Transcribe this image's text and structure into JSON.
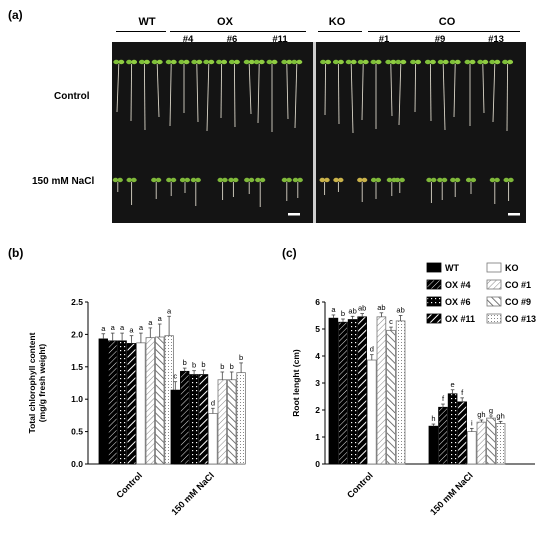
{
  "panels": {
    "a": "(a)",
    "b": "(b)",
    "c": "(c)"
  },
  "photo": {
    "groups": [
      {
        "label": "WT",
        "lines": []
      },
      {
        "label": "OX",
        "lines": [
          "#4",
          "#6",
          "#11"
        ]
      },
      {
        "label": "KO",
        "lines": []
      },
      {
        "label": "CO",
        "lines": [
          "#1",
          "#9",
          "#13"
        ]
      }
    ],
    "rows": [
      "Control",
      "150 mM NaCl"
    ]
  },
  "legend": {
    "left": [
      "WT",
      "OX #4",
      "OX #6",
      "OX #11"
    ],
    "right": [
      "KO",
      "CO #1",
      "CO #9",
      "CO #13"
    ]
  },
  "pattern_colors": {
    "dark": "#000000",
    "light_outline": "#777777",
    "background": "#ffffff"
  },
  "chart_data": [
    {
      "type": "bar",
      "panel": "(b)",
      "ylabel": "Total chlorophyll content (mg/g fresh weight)",
      "ylim": [
        0,
        2.5
      ],
      "yticks": [
        "0.0",
        "0.5",
        "1.0",
        "1.5",
        "2.0",
        "2.5"
      ],
      "categories": [
        "Control",
        "150 mM NaCl"
      ],
      "series": [
        {
          "name": "WT",
          "values": [
            1.93,
            1.14
          ],
          "errors": [
            0.08,
            0.13
          ],
          "letters": [
            "a",
            "c"
          ]
        },
        {
          "name": "OX #4",
          "values": [
            1.9,
            1.43
          ],
          "errors": [
            0.12,
            0.05
          ],
          "letters": [
            "a",
            "b"
          ]
        },
        {
          "name": "OX #6",
          "values": [
            1.9,
            1.38
          ],
          "errors": [
            0.12,
            0.06
          ],
          "letters": [
            "a",
            "b"
          ]
        },
        {
          "name": "OX #11",
          "values": [
            1.86,
            1.38
          ],
          "errors": [
            0.12,
            0.07
          ],
          "letters": [
            "a",
            "b"
          ]
        },
        {
          "name": "KO",
          "values": [
            1.87,
            0.78
          ],
          "errors": [
            0.15,
            0.08
          ],
          "letters": [
            "a",
            "d"
          ]
        },
        {
          "name": "CO #1",
          "values": [
            1.95,
            1.3
          ],
          "errors": [
            0.15,
            0.12
          ],
          "letters": [
            "a",
            "b"
          ]
        },
        {
          "name": "CO #9",
          "values": [
            1.96,
            1.3
          ],
          "errors": [
            0.2,
            0.12
          ],
          "letters": [
            "a",
            "b"
          ]
        },
        {
          "name": "CO #13",
          "values": [
            1.98,
            1.41
          ],
          "errors": [
            0.3,
            0.15
          ],
          "letters": [
            "a",
            "b"
          ]
        }
      ]
    },
    {
      "type": "bar",
      "panel": "(c)",
      "ylabel": "Root lenght (cm)",
      "ylim": [
        0,
        6
      ],
      "yticks": [
        "0",
        "1",
        "2",
        "3",
        "4",
        "5",
        "6"
      ],
      "categories": [
        "Control",
        "150 mM NaCl"
      ],
      "series": [
        {
          "name": "WT",
          "values": [
            5.4,
            1.4
          ],
          "errors": [
            0.12,
            0.08
          ],
          "letters": [
            "a",
            "h"
          ]
        },
        {
          "name": "OX #4",
          "values": [
            5.25,
            2.1
          ],
          "errors": [
            0.12,
            0.12
          ],
          "letters": [
            "b",
            "f"
          ]
        },
        {
          "name": "OX #6",
          "values": [
            5.35,
            2.6
          ],
          "errors": [
            0.12,
            0.15
          ],
          "letters": [
            "ab",
            "e"
          ]
        },
        {
          "name": "OX #11",
          "values": [
            5.45,
            2.3
          ],
          "errors": [
            0.12,
            0.15
          ],
          "letters": [
            "ab",
            "f"
          ]
        },
        {
          "name": "KO",
          "values": [
            3.85,
            1.2
          ],
          "errors": [
            0.2,
            0.12
          ],
          "letters": [
            "d",
            "i"
          ]
        },
        {
          "name": "CO #1",
          "values": [
            5.45,
            1.55
          ],
          "errors": [
            0.15,
            0.08
          ],
          "letters": [
            "ab",
            "gh"
          ]
        },
        {
          "name": "CO #9",
          "values": [
            4.95,
            1.7
          ],
          "errors": [
            0.12,
            0.08
          ],
          "letters": [
            "c",
            "g"
          ]
        },
        {
          "name": "CO #13",
          "values": [
            5.3,
            1.5
          ],
          "errors": [
            0.2,
            0.08
          ],
          "letters": [
            "ab",
            "gh"
          ]
        }
      ]
    }
  ]
}
